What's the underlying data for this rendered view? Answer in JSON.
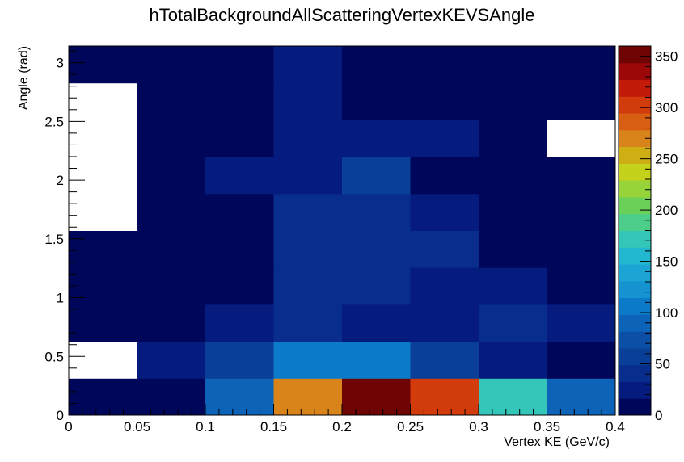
{
  "chart_data": {
    "type": "heatmap",
    "title": "hTotalBackgroundAllScatteringVertexKEVSAngle",
    "xlabel": "Vertex KE (GeV/c)",
    "ylabel": "Angle (rad)",
    "xlim": [
      0,
      0.4
    ],
    "ylim": [
      0,
      3.1416
    ],
    "x_edges": [
      0,
      0.05,
      0.1,
      0.15,
      0.2,
      0.25,
      0.3,
      0.35,
      0.4
    ],
    "y_edges": [
      0,
      0.3142,
      0.6283,
      0.9425,
      1.2566,
      1.5708,
      1.885,
      2.1991,
      2.5133,
      2.8274,
      3.1416
    ],
    "values": [
      [
        10,
        10,
        95,
        270,
        355,
        300,
        170,
        90
      ],
      [
        0,
        25,
        65,
        105,
        105,
        60,
        25,
        10
      ],
      [
        10,
        10,
        30,
        45,
        20,
        20,
        40,
        30
      ],
      [
        10,
        10,
        10,
        45,
        45,
        25,
        20,
        10
      ],
      [
        10,
        10,
        10,
        45,
        45,
        45,
        10,
        10
      ],
      [
        0,
        10,
        10,
        45,
        45,
        30,
        10,
        10
      ],
      [
        0,
        10,
        30,
        30,
        50,
        10,
        10,
        10
      ],
      [
        0,
        10,
        10,
        25,
        25,
        25,
        10,
        0
      ],
      [
        0,
        10,
        10,
        25,
        10,
        10,
        10,
        10
      ],
      [
        10,
        10,
        10,
        25,
        10,
        10,
        10,
        10
      ]
    ],
    "x_ticks": [
      "0",
      "0.05",
      "0.1",
      "0.15",
      "0.2",
      "0.25",
      "0.3",
      "0.35",
      "0.4"
    ],
    "x_tick_values": [
      0,
      0.05,
      0.1,
      0.15,
      0.2,
      0.25,
      0.3,
      0.35,
      0.4
    ],
    "y_ticks": [
      "0",
      "0.5",
      "1",
      "1.5",
      "2",
      "2.5",
      "3"
    ],
    "y_tick_values": [
      0,
      0.5,
      1,
      1.5,
      2,
      2.5,
      3
    ],
    "z_range": [
      0,
      360
    ],
    "z_ticks": [
      "0",
      "50",
      "100",
      "150",
      "200",
      "250",
      "300",
      "350"
    ],
    "z_tick_values": [
      0,
      50,
      100,
      150,
      200,
      250,
      300,
      350
    ],
    "palette": [
      "#00065a",
      "#051b7e",
      "#082d8c",
      "#0a3f98",
      "#0b4fa6",
      "#0c63b8",
      "#0b7ac8",
      "#1592d0",
      "#1ca5d4",
      "#22b8cf",
      "#34c6b8",
      "#4ccd8a",
      "#6ad05a",
      "#96d43a",
      "#c4d21b",
      "#cfae14",
      "#d9841b",
      "#d85e14",
      "#d23c0c",
      "#c41a0a",
      "#9c0808",
      "#6e0404"
    ],
    "empty_color": "#ffffff",
    "grid": false,
    "legend": "color bar at right"
  }
}
